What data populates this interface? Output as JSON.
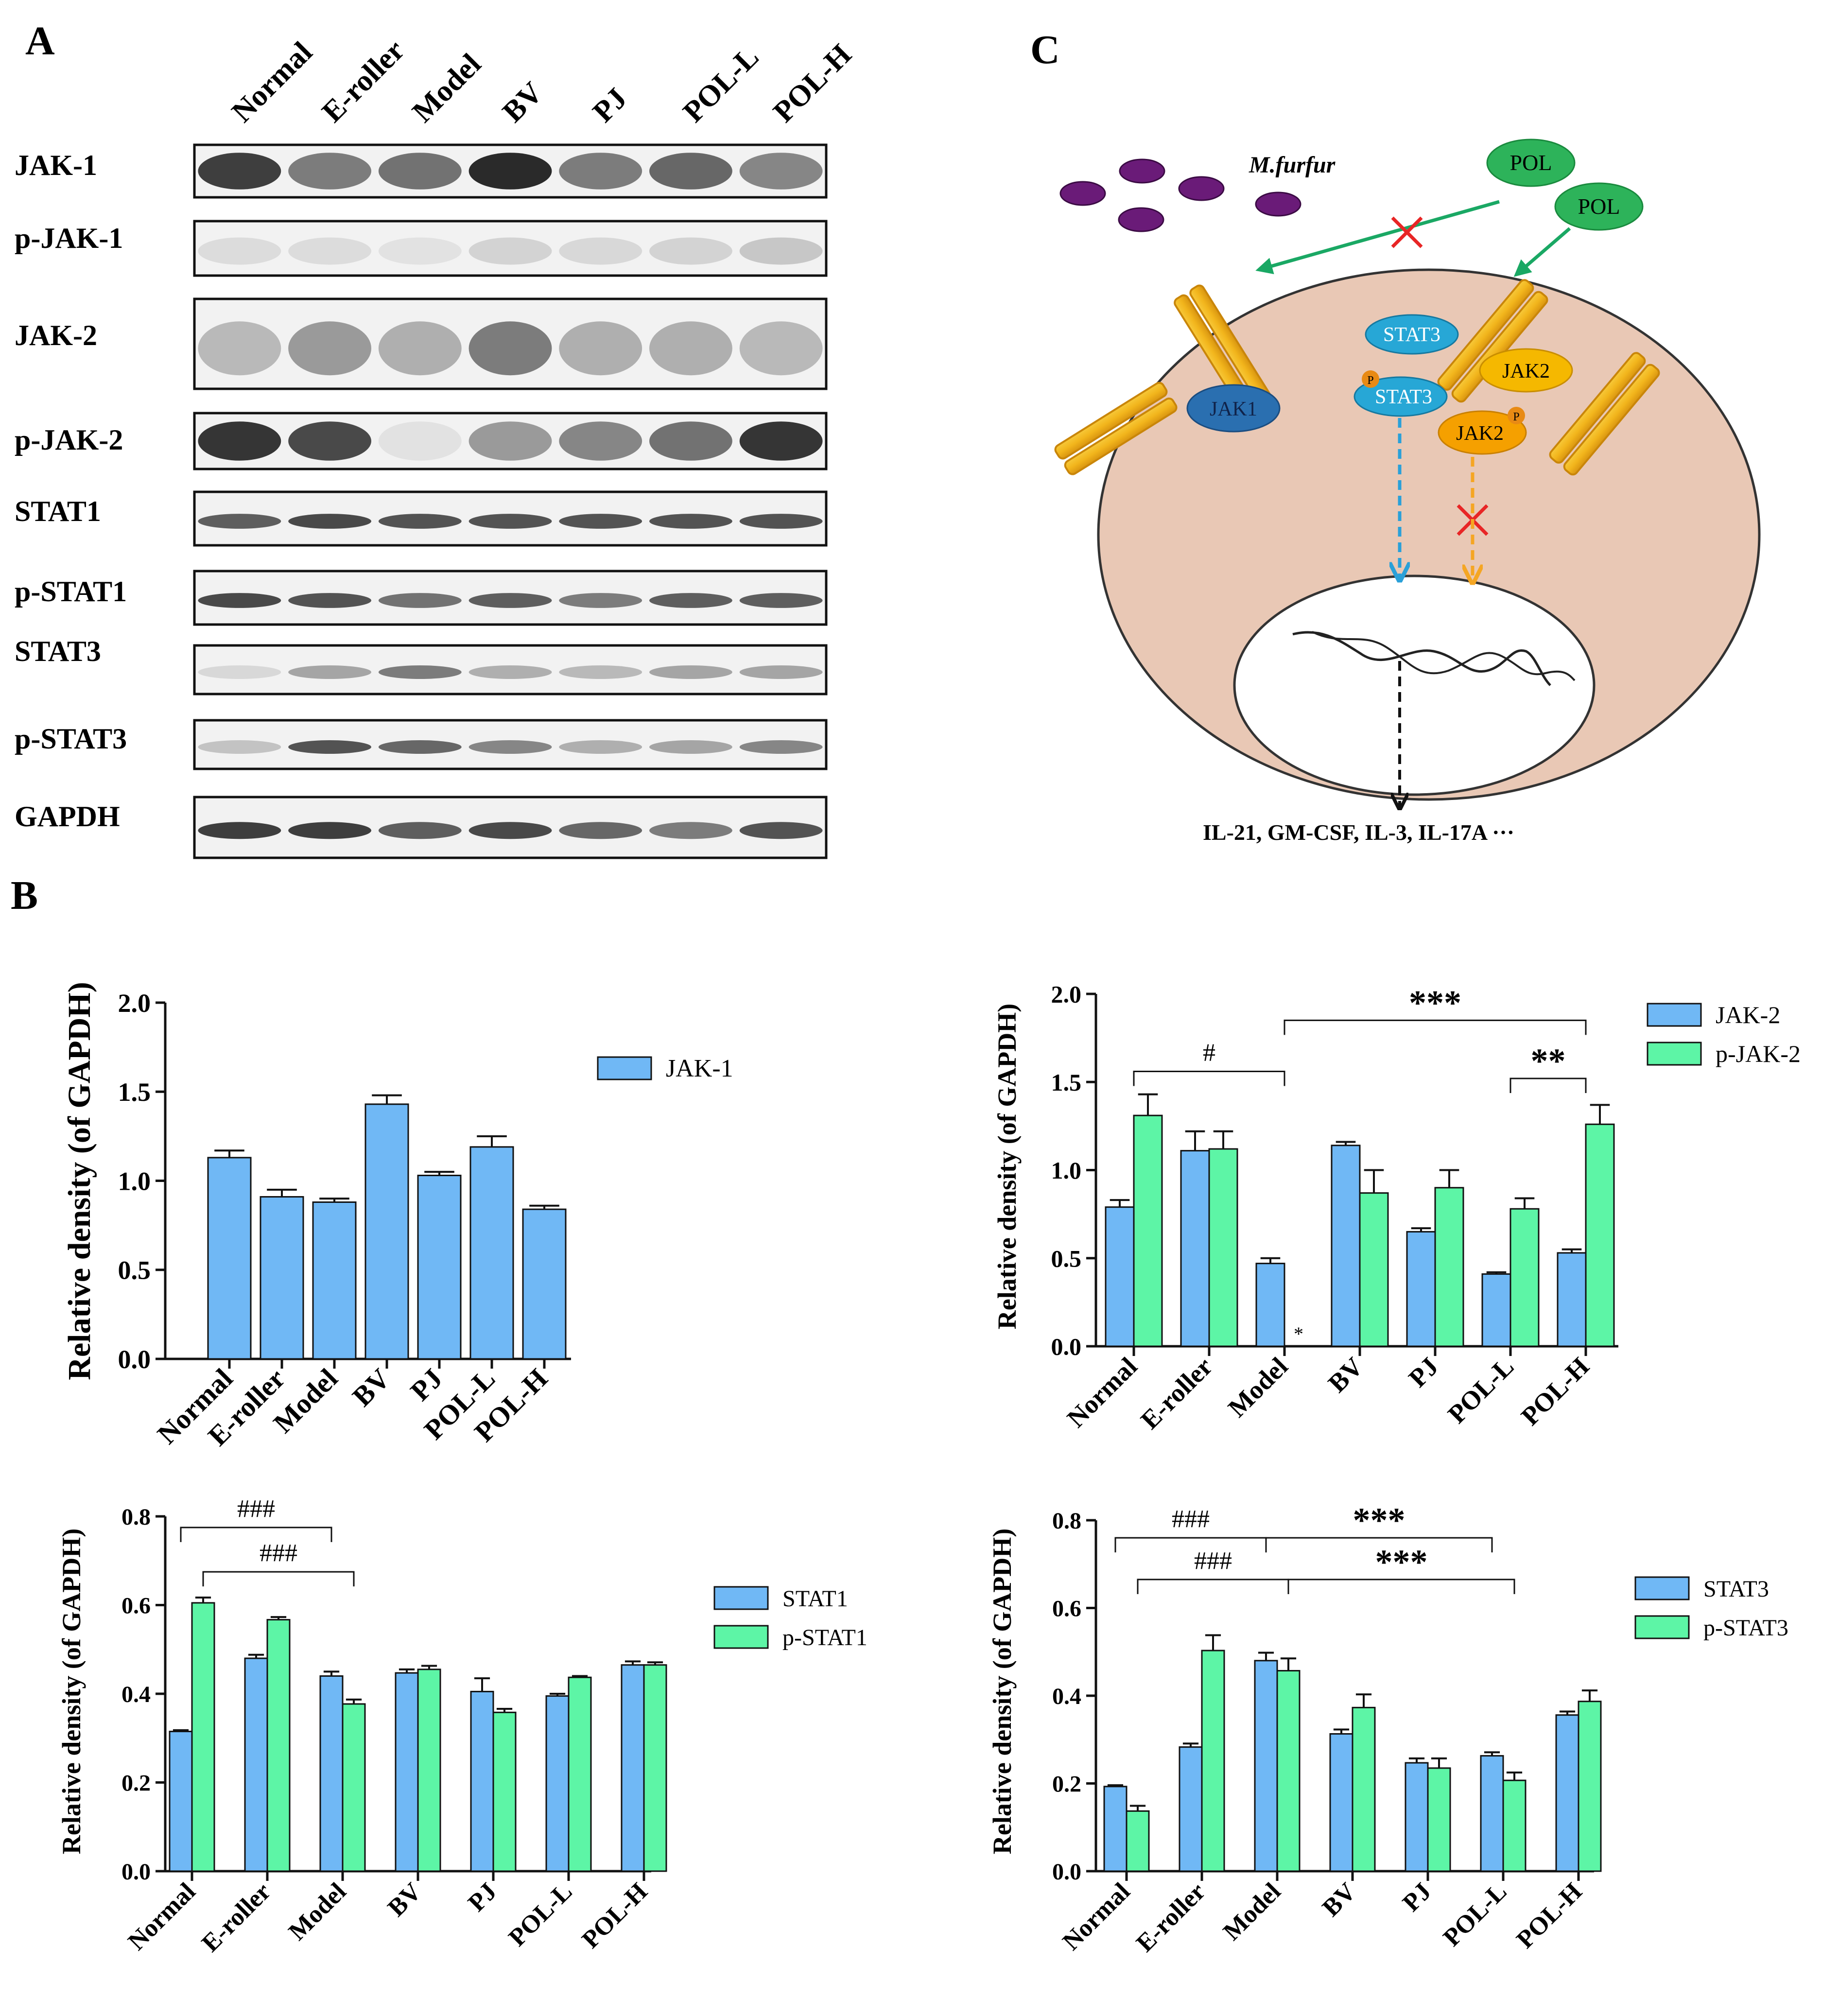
{
  "panels": {
    "a": "A",
    "b": "B",
    "c": "C"
  },
  "blot": {
    "lanes": [
      "Normal",
      "E-roller",
      "Model",
      "BV",
      "PJ",
      "POL-L",
      "POL-H"
    ],
    "rows": [
      {
        "label": "JAK-1",
        "intensity": [
          0.85,
          0.55,
          0.6,
          0.95,
          0.55,
          0.65,
          0.5
        ],
        "style": "broad"
      },
      {
        "label": "p-JAK-1",
        "intensity": [
          0.08,
          0.08,
          0.05,
          0.12,
          0.1,
          0.12,
          0.18
        ],
        "style": "faint"
      },
      {
        "label": "JAK-2",
        "intensity": [
          0.25,
          0.4,
          0.3,
          0.55,
          0.3,
          0.3,
          0.25
        ],
        "style": "smear"
      },
      {
        "label": "p-JAK-2",
        "intensity": [
          0.9,
          0.8,
          0.05,
          0.4,
          0.5,
          0.6,
          0.9
        ],
        "style": "broad"
      },
      {
        "label": "STAT1",
        "intensity": [
          0.7,
          0.8,
          0.75,
          0.75,
          0.75,
          0.75,
          0.75
        ],
        "style": "thin"
      },
      {
        "label": "p-STAT1",
        "intensity": [
          0.8,
          0.75,
          0.6,
          0.7,
          0.55,
          0.7,
          0.7
        ],
        "style": "thin"
      },
      {
        "label": "STAT3",
        "intensity": [
          0.1,
          0.35,
          0.55,
          0.3,
          0.25,
          0.35,
          0.35
        ],
        "style": "thin"
      },
      {
        "label": "p-STAT3",
        "intensity": [
          0.2,
          0.75,
          0.65,
          0.5,
          0.3,
          0.35,
          0.5
        ],
        "style": "thin"
      },
      {
        "label": "GAPDH",
        "intensity": [
          0.85,
          0.85,
          0.7,
          0.8,
          0.65,
          0.55,
          0.75
        ],
        "style": "thin"
      }
    ]
  },
  "chart_data": [
    {
      "type": "bar",
      "categories": [
        "Normal",
        "E-roller",
        "Model",
        "BV",
        "PJ",
        "POL-L",
        "POL-H"
      ],
      "series": [
        {
          "name": "JAK-1",
          "values": [
            1.13,
            0.91,
            0.88,
            1.43,
            1.03,
            1.19,
            0.84
          ],
          "errors": [
            0.04,
            0.04,
            0.02,
            0.05,
            0.02,
            0.06,
            0.02
          ]
        }
      ],
      "ylabel": "Relative density (of GAPDH)",
      "ylim": [
        0,
        2.0
      ],
      "yticks": [
        "0.0",
        "0.5",
        "1.0",
        "1.5",
        "2.0"
      ],
      "legend": "right",
      "annotations": []
    },
    {
      "type": "bar",
      "categories": [
        "Normal",
        "E-roller",
        "Model",
        "BV",
        "PJ",
        "POL-L",
        "POL-H"
      ],
      "series": [
        {
          "name": "JAK-2",
          "values": [
            0.79,
            1.11,
            0.47,
            1.14,
            0.65,
            0.41,
            0.53
          ],
          "errors": [
            0.04,
            0.11,
            0.03,
            0.02,
            0.02,
            0.01,
            0.02
          ]
        },
        {
          "name": "p-JAK-2",
          "values": [
            1.31,
            1.12,
            0.0,
            0.87,
            0.9,
            0.78,
            1.26
          ],
          "errors": [
            0.12,
            0.1,
            0.0,
            0.13,
            0.1,
            0.06,
            0.11
          ]
        }
      ],
      "ylabel": "Relative density (of GAPDH)",
      "ylim": [
        0,
        2.0
      ],
      "yticks": [
        "0.0",
        "0.5",
        "1.0",
        "1.5",
        "2.0"
      ],
      "legend": "right",
      "star_mark": "*",
      "annotations": [
        {
          "text": "#",
          "from_cat": 0,
          "to_cat": 2,
          "y": 1.56
        },
        {
          "text": "***",
          "from_cat": 2,
          "to_cat": 6,
          "y": 1.85
        },
        {
          "text": "**",
          "from_cat": 5,
          "to_cat": 6,
          "y": 1.52
        }
      ]
    },
    {
      "type": "bar",
      "categories": [
        "Normal",
        "E-roller",
        "Model",
        "BV",
        "PJ",
        "POL-L",
        "POL-H"
      ],
      "series": [
        {
          "name": "STAT1",
          "values": [
            0.315,
            0.48,
            0.44,
            0.447,
            0.405,
            0.395,
            0.465
          ],
          "errors": [
            0.003,
            0.008,
            0.01,
            0.008,
            0.03,
            0.005,
            0.008
          ]
        },
        {
          "name": "p-STAT1",
          "values": [
            0.605,
            0.567,
            0.377,
            0.455,
            0.358,
            0.437,
            0.465
          ],
          "errors": [
            0.012,
            0.006,
            0.01,
            0.008,
            0.008,
            0.003,
            0.006
          ]
        }
      ],
      "ylabel": "Relative density (of GAPDH)",
      "ylim": [
        0,
        0.8
      ],
      "yticks": [
        "0.0",
        "0.2",
        "0.4",
        "0.6",
        "0.8"
      ],
      "legend": "right",
      "annotations": [
        {
          "text": "###",
          "from_bar": [
            0,
            0
          ],
          "to_bar": [
            2,
            0
          ],
          "y": 0.775
        },
        {
          "text": "###",
          "from_bar": [
            0,
            1
          ],
          "to_bar": [
            2,
            1
          ],
          "y": 0.675
        }
      ]
    },
    {
      "type": "bar",
      "categories": [
        "Normal",
        "E-roller",
        "Model",
        "BV",
        "PJ",
        "POL-L",
        "POL-H"
      ],
      "series": [
        {
          "name": "STAT3",
          "values": [
            0.193,
            0.283,
            0.48,
            0.313,
            0.247,
            0.263,
            0.356
          ],
          "errors": [
            0.003,
            0.008,
            0.018,
            0.01,
            0.01,
            0.008,
            0.008
          ]
        },
        {
          "name": "p-STAT3",
          "values": [
            0.137,
            0.503,
            0.457,
            0.373,
            0.235,
            0.207,
            0.387
          ],
          "errors": [
            0.012,
            0.035,
            0.028,
            0.03,
            0.022,
            0.018,
            0.025
          ]
        }
      ],
      "ylabel": "Relative density (of GAPDH)",
      "ylim": [
        0,
        0.8
      ],
      "yticks": [
        "0.0",
        "0.2",
        "0.4",
        "0.6",
        "0.8"
      ],
      "legend": "right",
      "annotations": [
        {
          "text": "###",
          "from_bar": [
            0,
            0
          ],
          "to_bar": [
            2,
            0
          ],
          "y": 0.76
        },
        {
          "text": "***",
          "from_bar": [
            2,
            0
          ],
          "to_bar": [
            5,
            0
          ],
          "y": 0.76
        },
        {
          "text": "###",
          "from_bar": [
            0,
            1
          ],
          "to_bar": [
            2,
            1
          ],
          "y": 0.665
        },
        {
          "text": "***",
          "from_bar": [
            2,
            1
          ],
          "to_bar": [
            5,
            1
          ],
          "y": 0.665
        }
      ]
    }
  ],
  "pathway": {
    "fungus": "M.furfur",
    "drug_labels": [
      "POL",
      "POL"
    ],
    "proteins": {
      "stat3_top": "STAT3",
      "stat3_p": "STAT3",
      "jak1": "JAK1",
      "jak2_top": "JAK2",
      "jak2_p": "JAK2"
    },
    "phospho_mark": "P",
    "cytokines": "IL-21, GM-CSF, IL-3, IL-17A ···",
    "colors": {
      "cell": "#e9c8b5",
      "receptor": "#f2b51c",
      "receptor_edge": "#d28a0c",
      "stat3": "#27a7d6",
      "jak1": "#2a6fb0",
      "jak2": "#f5b800",
      "fungus": "#6a1b78",
      "pol": "#2db35a",
      "arrow_green": "#1aa864",
      "block": "#e82525",
      "arrow_blue": "#2aa0d8",
      "arrow_orange": "#f5a623"
    }
  },
  "colors": {
    "bar_blue": "#70b8f5",
    "bar_green": "#5df5a6",
    "bar_edge": "#111111"
  }
}
